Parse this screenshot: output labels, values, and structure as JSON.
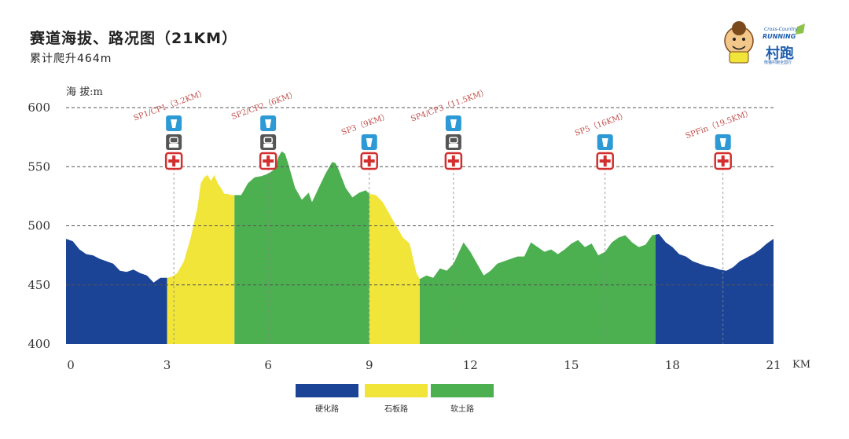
{
  "header": {
    "title": "赛道海拔、路况图（21KM）",
    "subtitle": "累计爬升464m"
  },
  "logo": {
    "line1": "Cross-Country",
    "line2": "RUNNING",
    "line3": "村跑",
    "line4": "熊猫村跑全国行"
  },
  "colors": {
    "hard_road": "#1b4496",
    "stone_road": "#f2e53a",
    "soft_road": "#4caf50",
    "grid": "#555555",
    "station_label": "#c0504d",
    "aid_red": "#d32f2f",
    "water_blue": "#2d9ad6",
    "toilet_gray": "#555555"
  },
  "chart_data": {
    "type": "area",
    "title": "赛道海拔、路况图（21KM）",
    "ylabel": "海 拔:m",
    "xunit": "KM",
    "xlim": [
      0,
      21
    ],
    "ylim": [
      400,
      600
    ],
    "xticks": [
      0,
      3,
      6,
      9,
      12,
      15,
      18,
      21
    ],
    "yticks": [
      400,
      450,
      500,
      550,
      600
    ],
    "grid": true,
    "profile": [
      [
        0.0,
        489
      ],
      [
        0.2,
        487
      ],
      [
        0.4,
        480
      ],
      [
        0.6,
        476
      ],
      [
        0.8,
        475
      ],
      [
        1.0,
        472
      ],
      [
        1.2,
        470
      ],
      [
        1.4,
        468
      ],
      [
        1.6,
        462
      ],
      [
        1.8,
        461
      ],
      [
        2.0,
        463
      ],
      [
        2.2,
        460
      ],
      [
        2.4,
        458
      ],
      [
        2.6,
        452
      ],
      [
        2.8,
        456
      ],
      [
        3.0,
        456
      ],
      [
        3.15,
        457
      ],
      [
        3.3,
        460
      ],
      [
        3.5,
        470
      ],
      [
        3.7,
        490
      ],
      [
        3.9,
        515
      ],
      [
        4.0,
        536
      ],
      [
        4.1,
        541
      ],
      [
        4.2,
        543
      ],
      [
        4.3,
        538
      ],
      [
        4.4,
        543
      ],
      [
        4.5,
        536
      ],
      [
        4.6,
        532
      ],
      [
        4.7,
        527
      ],
      [
        4.8,
        527
      ],
      [
        4.9,
        526
      ],
      [
        5.0,
        526
      ],
      [
        5.2,
        526
      ],
      [
        5.4,
        536
      ],
      [
        5.6,
        541
      ],
      [
        5.8,
        542
      ],
      [
        6.0,
        544
      ],
      [
        6.2,
        548
      ],
      [
        6.3,
        558
      ],
      [
        6.4,
        563
      ],
      [
        6.5,
        561
      ],
      [
        6.6,
        552
      ],
      [
        6.7,
        542
      ],
      [
        6.8,
        532
      ],
      [
        7.0,
        522
      ],
      [
        7.2,
        528
      ],
      [
        7.3,
        520
      ],
      [
        7.5,
        532
      ],
      [
        7.7,
        544
      ],
      [
        7.9,
        554
      ],
      [
        8.0,
        553
      ],
      [
        8.1,
        547
      ],
      [
        8.3,
        532
      ],
      [
        8.5,
        524
      ],
      [
        8.7,
        528
      ],
      [
        8.9,
        530
      ],
      [
        9.0,
        527
      ],
      [
        9.2,
        526
      ],
      [
        9.4,
        520
      ],
      [
        9.6,
        510
      ],
      [
        9.8,
        500
      ],
      [
        10.0,
        490
      ],
      [
        10.2,
        485
      ],
      [
        10.4,
        460
      ],
      [
        10.5,
        455
      ],
      [
        10.7,
        458
      ],
      [
        10.9,
        456
      ],
      [
        11.1,
        464
      ],
      [
        11.3,
        462
      ],
      [
        11.5,
        468
      ],
      [
        11.7,
        480
      ],
      [
        11.8,
        486
      ],
      [
        12.0,
        478
      ],
      [
        12.2,
        468
      ],
      [
        12.4,
        458
      ],
      [
        12.6,
        462
      ],
      [
        12.8,
        468
      ],
      [
        13.0,
        470
      ],
      [
        13.2,
        472
      ],
      [
        13.4,
        474
      ],
      [
        13.6,
        474
      ],
      [
        13.8,
        486
      ],
      [
        14.0,
        482
      ],
      [
        14.2,
        478
      ],
      [
        14.4,
        480
      ],
      [
        14.6,
        476
      ],
      [
        14.8,
        480
      ],
      [
        15.0,
        485
      ],
      [
        15.2,
        488
      ],
      [
        15.4,
        482
      ],
      [
        15.6,
        485
      ],
      [
        15.8,
        475
      ],
      [
        16.0,
        478
      ],
      [
        16.2,
        486
      ],
      [
        16.4,
        490
      ],
      [
        16.6,
        492
      ],
      [
        16.8,
        486
      ],
      [
        17.0,
        482
      ],
      [
        17.2,
        484
      ],
      [
        17.4,
        492
      ],
      [
        17.6,
        493
      ],
      [
        17.8,
        486
      ],
      [
        18.0,
        482
      ],
      [
        18.2,
        476
      ],
      [
        18.4,
        474
      ],
      [
        18.6,
        470
      ],
      [
        18.8,
        468
      ],
      [
        19.0,
        466
      ],
      [
        19.2,
        465
      ],
      [
        19.4,
        463
      ],
      [
        19.6,
        462
      ],
      [
        19.8,
        465
      ],
      [
        20.0,
        470
      ],
      [
        20.2,
        473
      ],
      [
        20.4,
        476
      ],
      [
        20.6,
        480
      ],
      [
        20.8,
        485
      ],
      [
        21.0,
        489
      ]
    ],
    "segments": [
      {
        "from": 0.0,
        "to": 3.0,
        "surface": "硬化路"
      },
      {
        "from": 3.0,
        "to": 5.0,
        "surface": "石板路"
      },
      {
        "from": 5.0,
        "to": 9.0,
        "surface": "软土路"
      },
      {
        "from": 9.0,
        "to": 10.5,
        "surface": "石板路"
      },
      {
        "from": 10.5,
        "to": 17.5,
        "surface": "软土路"
      },
      {
        "from": 17.5,
        "to": 21.0,
        "surface": "硬化路"
      }
    ],
    "stations": [
      {
        "label": "SP1/CP1（3.2KM）",
        "km": 3.2,
        "icons": [
          "water",
          "toilet",
          "aid"
        ]
      },
      {
        "label": "SP2/CP2（6KM）",
        "km": 6.0,
        "icons": [
          "water",
          "toilet",
          "aid"
        ]
      },
      {
        "label": "SP3（9KM）",
        "km": 9.0,
        "icons": [
          "water",
          "aid"
        ]
      },
      {
        "label": "SP4/CP3（11.5KM）",
        "km": 11.5,
        "icons": [
          "water",
          "toilet",
          "aid"
        ]
      },
      {
        "label": "SP5（16KM）",
        "km": 16.0,
        "icons": [
          "water",
          "aid"
        ]
      },
      {
        "label": "SPFin（19.5KM）",
        "km": 19.5,
        "icons": [
          "water",
          "aid"
        ]
      }
    ],
    "legend": [
      {
        "name": "硬化路",
        "color": "#1b4496"
      },
      {
        "name": "石板路",
        "color": "#f2e53a"
      },
      {
        "name": "软土路",
        "color": "#4caf50"
      }
    ]
  }
}
